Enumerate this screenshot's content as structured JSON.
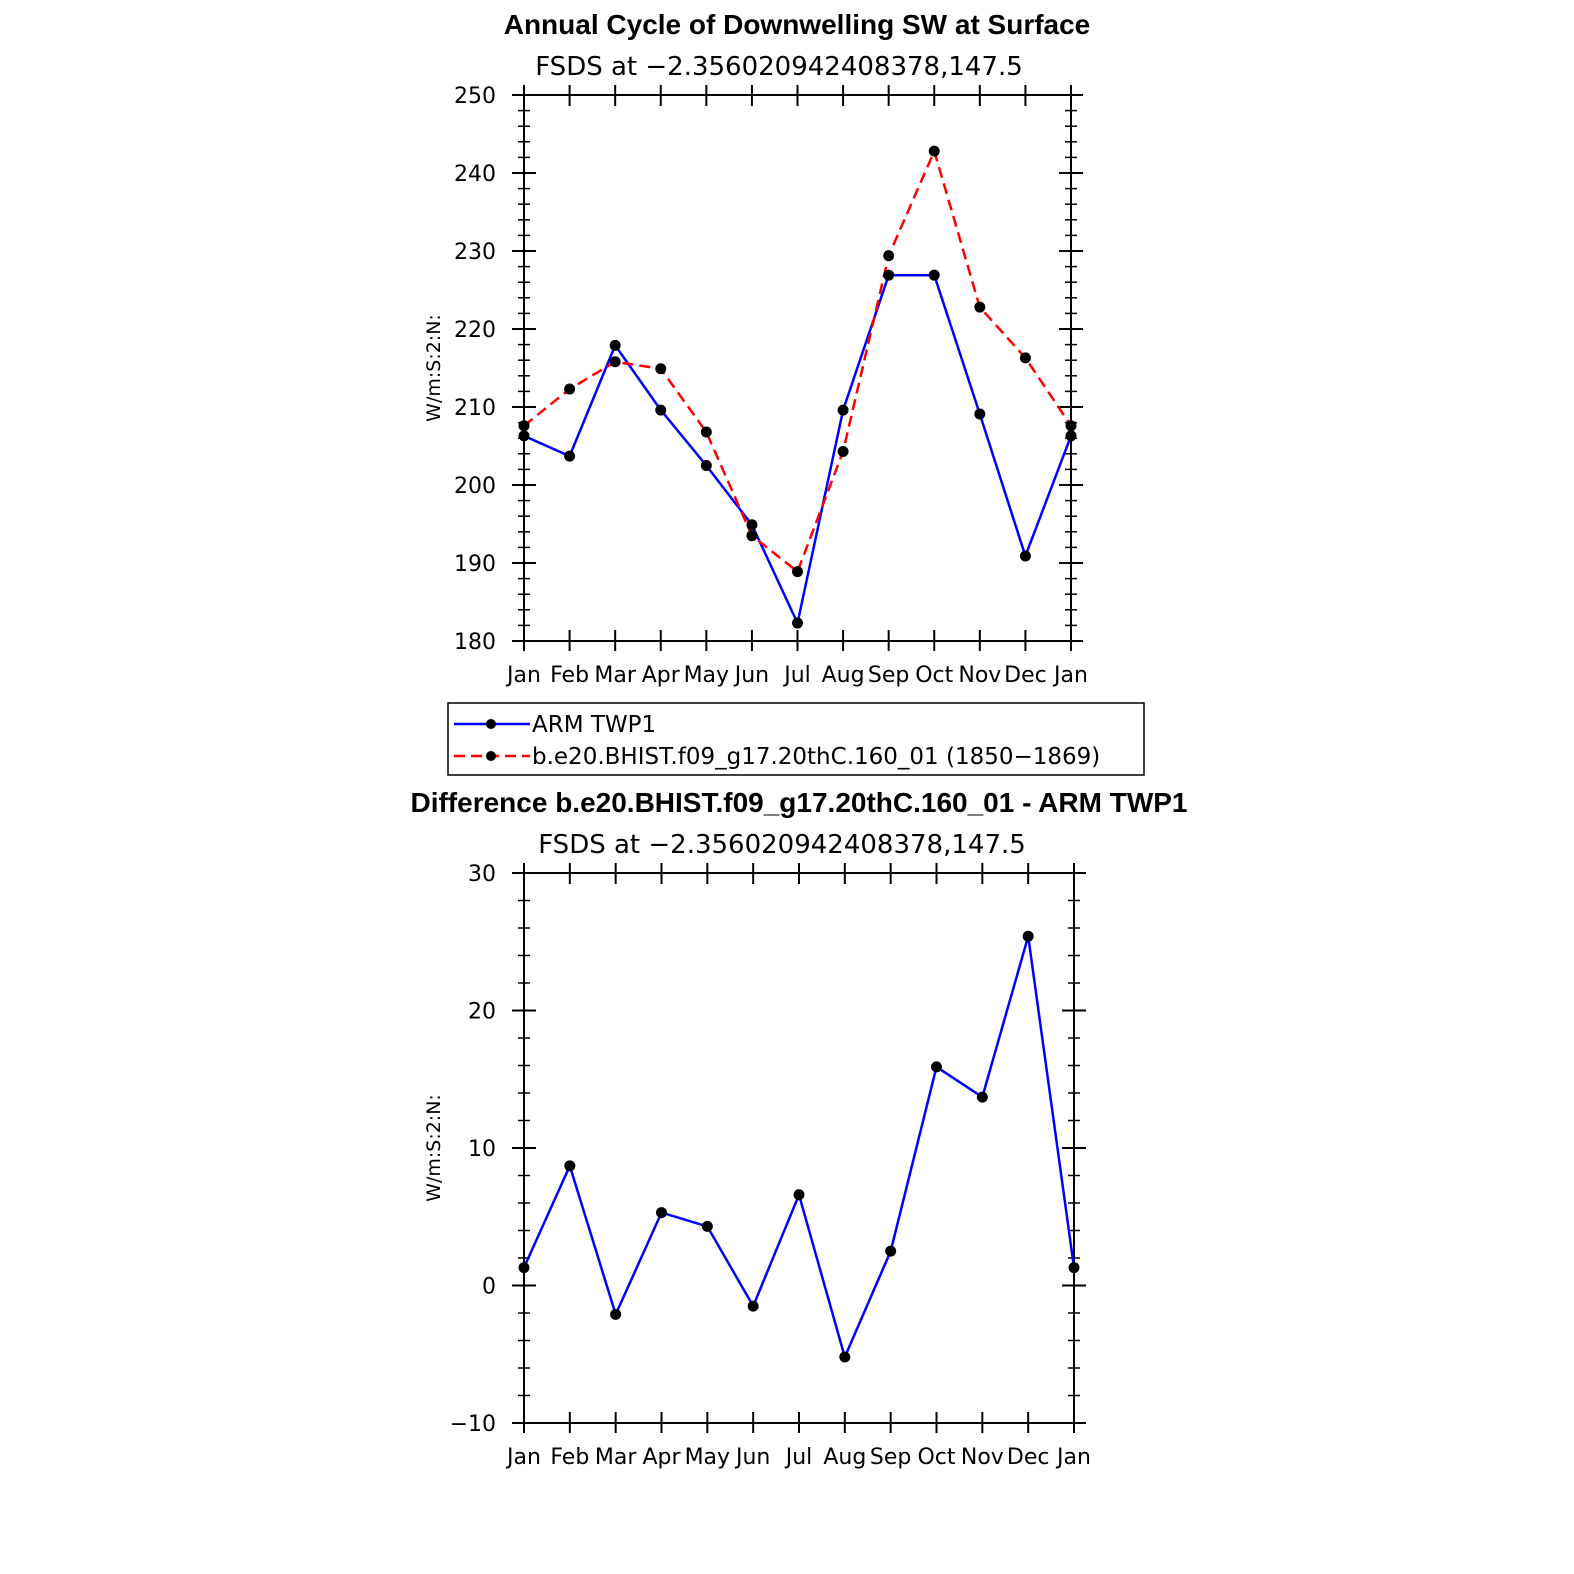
{
  "colors": {
    "obs": "#0000ff",
    "model": "#ff0000",
    "diff": "#0000ff",
    "marker": "#000000"
  },
  "legend": {
    "obs_label": "ARM TWP1",
    "model_label": "b.e20.BHIST.f09_g17.20thC.160_01 (1850−1869)"
  },
  "chart_data": [
    {
      "type": "line",
      "title": "Annual Cycle of Downwelling SW at Surface",
      "subtitle": "FSDS at −2.356020942408378,147.5",
      "ylabel": "W/m:S:2:N:",
      "ylim": [
        180,
        250
      ],
      "yticks": [
        180,
        190,
        200,
        210,
        220,
        230,
        240,
        250
      ],
      "ytick_labels": [
        "180",
        "190",
        "200",
        "210",
        "220",
        "230",
        "240",
        "250"
      ],
      "categories": [
        "Jan",
        "Feb",
        "Mar",
        "Apr",
        "May",
        "Jun",
        "Jul",
        "Aug",
        "Sep",
        "Oct",
        "Nov",
        "Dec",
        "Jan"
      ],
      "series": [
        {
          "name": "ARM TWP1",
          "style": "solid",
          "values": [
            206.3,
            203.7,
            217.9,
            209.6,
            202.5,
            194.9,
            182.3,
            209.6,
            226.9,
            226.9,
            209.1,
            190.9,
            206.3
          ]
        },
        {
          "name": "b.e20.BHIST.f09_g17.20thC.160_01 (1850−1869)",
          "style": "dashed",
          "values": [
            207.6,
            212.3,
            215.8,
            214.9,
            206.8,
            193.5,
            188.9,
            204.3,
            229.4,
            242.8,
            222.8,
            216.3,
            207.6
          ]
        }
      ]
    },
    {
      "type": "line",
      "title": "Difference b.e20.BHIST.f09_g17.20thC.160_01 - ARM TWP1",
      "subtitle": "FSDS at −2.356020942408378,147.5",
      "ylabel": "W/m:S:2:N:",
      "ylim": [
        -10,
        30
      ],
      "yticks": [
        -10,
        0,
        10,
        20,
        30
      ],
      "ytick_labels": [
        "−10",
        "0",
        "10",
        "20",
        "30"
      ],
      "categories": [
        "Jan",
        "Feb",
        "Mar",
        "Apr",
        "May",
        "Jun",
        "Jul",
        "Aug",
        "Sep",
        "Oct",
        "Nov",
        "Dec",
        "Jan"
      ],
      "series": [
        {
          "name": "",
          "style": "solid",
          "values": [
            1.3,
            8.7,
            -2.1,
            5.3,
            4.3,
            -1.5,
            6.6,
            -5.2,
            2.5,
            15.9,
            13.7,
            25.4,
            1.3
          ]
        }
      ]
    }
  ]
}
